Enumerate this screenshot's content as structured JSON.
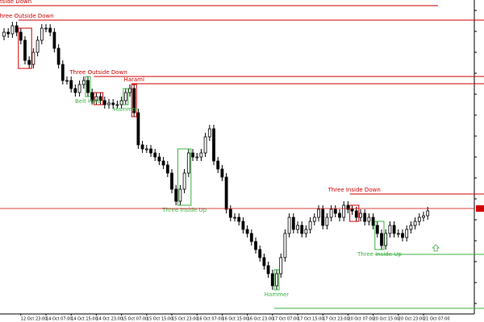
{
  "chart_data": {
    "type": "candlestick",
    "categories": [
      null,
      null,
      null,
      null,
      "12 Oct 23:00",
      null,
      null,
      null,
      null,
      null,
      "14 Oct 07:00",
      null,
      null,
      null,
      null,
      null,
      "14 Oct 15:00",
      null,
      null,
      null,
      null,
      null,
      "14 Oct 23:00",
      null,
      null,
      null,
      null,
      null,
      "15 Oct 07:00",
      null,
      null,
      null,
      null,
      null,
      "15 Oct 15:00",
      null,
      null,
      null,
      null,
      null,
      "15 Oct 23:00",
      null,
      null,
      null,
      null,
      null,
      "16 Oct 07:00",
      null,
      null,
      null,
      null,
      null,
      "16 Oct 15:00",
      null,
      null,
      null,
      null,
      null,
      "16 Oct 23:00",
      null,
      null,
      null,
      null,
      null,
      "17 Oct 07:00",
      null,
      null,
      null,
      null,
      null,
      "17 Oct 15:00",
      null,
      null,
      null,
      null,
      null,
      "17 Oct 23:00",
      null,
      null,
      null,
      null,
      null,
      "20 Oct 07:00",
      null,
      null,
      null,
      null,
      null,
      "20 Oct 15:00",
      null,
      null,
      null,
      null,
      null,
      "20 Oct 23:00",
      null,
      null,
      null,
      null,
      null,
      "21 Oct 07:00",
      null
    ],
    "open": [
      345,
      350,
      348,
      358,
      350,
      340,
      315,
      310,
      325,
      340,
      355,
      355,
      350,
      330,
      310,
      290,
      290,
      280,
      275,
      285,
      290,
      275,
      265,
      270,
      265,
      260,
      262,
      260,
      260,
      265,
      275,
      280,
      250,
      210,
      205,
      205,
      200,
      195,
      190,
      185,
      175,
      155,
      140,
      155,
      175,
      200,
      195,
      195,
      200,
      220,
      230,
      190,
      180,
      170,
      130,
      120,
      120,
      115,
      105,
      100,
      90,
      80,
      70,
      60,
      50,
      35,
      50,
      70,
      100,
      120,
      105,
      110,
      100,
      105,
      115,
      120,
      130,
      110,
      120,
      130,
      125,
      120,
      135,
      130,
      128,
      120,
      125,
      115,
      120,
      110,
      100,
      85,
      100,
      110,
      100,
      100,
      95,
      105,
      110,
      115,
      120,
      122
    ],
    "high": [
      355,
      355,
      363,
      363,
      355,
      345,
      320,
      330,
      345,
      360,
      360,
      360,
      355,
      335,
      315,
      295,
      295,
      285,
      290,
      295,
      295,
      280,
      275,
      275,
      270,
      267,
      267,
      265,
      270,
      280,
      285,
      285,
      255,
      215,
      210,
      210,
      205,
      200,
      195,
      190,
      180,
      160,
      160,
      180,
      205,
      205,
      200,
      205,
      225,
      235,
      235,
      195,
      185,
      175,
      135,
      125,
      125,
      120,
      110,
      105,
      95,
      85,
      75,
      65,
      55,
      55,
      75,
      105,
      125,
      125,
      115,
      115,
      110,
      120,
      125,
      135,
      135,
      125,
      135,
      135,
      130,
      140,
      140,
      135,
      133,
      130,
      130,
      125,
      125,
      115,
      105,
      105,
      115,
      115,
      105,
      105,
      110,
      115,
      120,
      125,
      127,
      133
    ],
    "low": [
      340,
      343,
      343,
      345,
      335,
      310,
      305,
      305,
      320,
      335,
      350,
      345,
      325,
      305,
      285,
      285,
      275,
      270,
      270,
      280,
      270,
      260,
      260,
      260,
      255,
      255,
      255,
      255,
      255,
      260,
      270,
      245,
      205,
      200,
      200,
      195,
      190,
      185,
      180,
      170,
      150,
      135,
      135,
      150,
      170,
      190,
      190,
      190,
      195,
      215,
      185,
      175,
      165,
      125,
      115,
      115,
      110,
      100,
      95,
      85,
      75,
      65,
      55,
      45,
      30,
      30,
      45,
      65,
      95,
      100,
      100,
      95,
      95,
      100,
      110,
      115,
      105,
      105,
      115,
      120,
      115,
      115,
      125,
      123,
      115,
      115,
      110,
      110,
      105,
      95,
      80,
      80,
      95,
      95,
      95,
      90,
      90,
      100,
      105,
      110,
      115,
      117
    ],
    "close": [
      350,
      348,
      358,
      350,
      340,
      315,
      310,
      325,
      340,
      355,
      355,
      350,
      330,
      310,
      290,
      290,
      280,
      275,
      285,
      290,
      275,
      265,
      270,
      265,
      260,
      262,
      260,
      260,
      265,
      275,
      280,
      250,
      210,
      205,
      205,
      200,
      195,
      190,
      185,
      175,
      155,
      140,
      155,
      175,
      200,
      195,
      195,
      200,
      220,
      230,
      190,
      180,
      170,
      130,
      120,
      120,
      115,
      105,
      100,
      90,
      80,
      70,
      60,
      50,
      35,
      50,
      70,
      100,
      120,
      105,
      110,
      100,
      105,
      115,
      120,
      130,
      110,
      120,
      130,
      125,
      120,
      135,
      130,
      128,
      120,
      125,
      115,
      120,
      110,
      100,
      85,
      100,
      110,
      100,
      100,
      95,
      105,
      110,
      115,
      120,
      122,
      128
    ],
    "up_color": "#ffffff",
    "down_color": "#000000",
    "ylim": [
      0,
      390
    ],
    "yticks": [
      13,
      39,
      65,
      91,
      117,
      143,
      169,
      195,
      221,
      247,
      273,
      299,
      325,
      351,
      377
    ],
    "current_price": {
      "value": 131,
      "color": "#d00000"
    },
    "patterns": [
      {
        "label": "tside Down",
        "color": "#d00000",
        "level": 383
      },
      {
        "label": "Three Outside Down",
        "color": "#d00000",
        "start": 4,
        "end": 6,
        "level": 365
      },
      {
        "label": "Three Outside Down",
        "color": "#d00000",
        "start": 22,
        "end": 23,
        "level": 295
      },
      {
        "label": "Harami",
        "color": "#d00000",
        "start": 31,
        "end": 31,
        "level": 286
      },
      {
        "label": "Belt Hold",
        "color": "#3cb043",
        "start": 20,
        "end": 20
      },
      {
        "label": "Hammer",
        "color": "#3cb043",
        "start": 29,
        "end": 29
      },
      {
        "label": "Three Inside Up",
        "color": "#3cb043",
        "start": 42,
        "end": 44
      },
      {
        "label": "Three Inside Down",
        "color": "#d00000",
        "start": 83,
        "end": 84,
        "level": 149
      },
      {
        "label": "Three Inside Up",
        "color": "#3cb043",
        "start": 89,
        "end": 90,
        "level": 74
      },
      {
        "label": "Hammer",
        "color": "#3cb043",
        "start": 65,
        "end": 65,
        "level": 7
      }
    ]
  }
}
